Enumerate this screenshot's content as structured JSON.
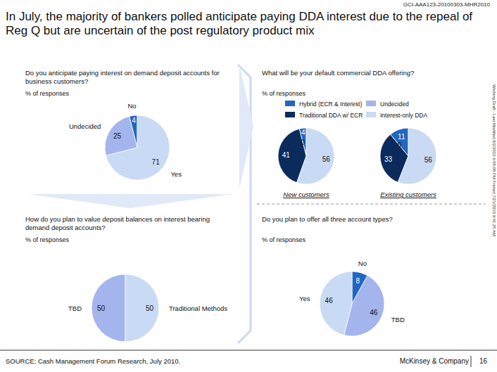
{
  "title": "In July, the majority of bankers polled anticipate paying DDA interest due to the repeal of Reg Q but are uncertain of the post regulatory product mix",
  "doc_id": "GCI-AAA123-20100303-MHR2010",
  "source": "SOURCE: Cash Management Forum Research, July 2010.",
  "footer": "McKinsey & Company",
  "page_number": "16",
  "side_note": "Working Draft - Last Modified 8/2/2010 6:58:08 PM    Printed 7/21/2010 9:41:25 AM",
  "chart_data": [
    {
      "type": "pie",
      "title": "Do you anticipate paying interest on demand deposit accounts for business customers?",
      "subtitle": "% of responses",
      "categories": [
        "No",
        "Undecided",
        "Yes"
      ],
      "values": [
        4,
        25,
        71
      ],
      "colors": [
        "#2167c0",
        "#a4b4ec",
        "#c9daf4"
      ],
      "data_labels": true
    },
    {
      "type": "pie",
      "title": "What will be your default commercial DDA offering?",
      "subtitle": "% of responses",
      "categories": [
        "Hybrid (ECR & Interest)",
        "Undecided",
        "Traditional DDA w/ ECR",
        "Interest-only DDA"
      ],
      "colors": [
        "#2167c0",
        "#a4b4ec",
        "#0b2b5c",
        "#c9daf4"
      ],
      "series": [
        {
          "name": "New customers",
          "values": [
            4,
            0,
            41,
            56
          ]
        },
        {
          "name": "Existing customers",
          "values": [
            11,
            0,
            33,
            56
          ]
        }
      ],
      "legend": "top",
      "data_labels": true
    },
    {
      "type": "pie",
      "title": "How do you plan to value deposit balances on interest bearing demand deposit accounts?",
      "subtitle": "% of responses",
      "categories": [
        "TBD",
        "Traditional Methods"
      ],
      "values": [
        50,
        50
      ],
      "colors": [
        "#a4b4ec",
        "#c9daf4"
      ],
      "data_labels": true
    },
    {
      "type": "pie",
      "title": "Do you plan to offer all three account types?",
      "subtitle": "% of responses",
      "categories": [
        "No",
        "TBD",
        "Yes"
      ],
      "values": [
        8,
        46,
        46
      ],
      "colors": [
        "#2167c0",
        "#a4b4ec",
        "#c9daf4"
      ],
      "data_labels": true
    }
  ]
}
